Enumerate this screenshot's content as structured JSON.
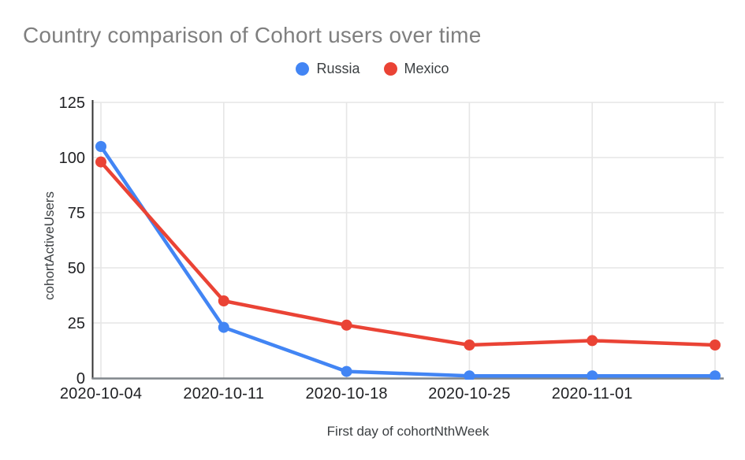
{
  "page": {
    "background": "#ffffff"
  },
  "chart_data": {
    "type": "line",
    "title": "Country comparison of Cohort users over time",
    "title_color": "#7f7f7f",
    "xlabel": "First day of cohortNthWeek",
    "ylabel": "cohortActiveUsers",
    "x_tick_labels": [
      "2020-10-04",
      "2020-10-11",
      "2020-10-18",
      "2020-10-25",
      "2020-11-01",
      ""
    ],
    "y_ticks": [
      0,
      25,
      50,
      75,
      100,
      125
    ],
    "ylim": [
      0,
      125
    ],
    "grid": true,
    "legend_position": "top-center",
    "gridline_color": "#e6e6e6",
    "y_axis_color": "#333333",
    "x_axis_color": "#80868b",
    "tick_label_color": "#202124",
    "axis_title_color": "#3c4043",
    "series": [
      {
        "name": "Russia",
        "color": "#4285f4",
        "values": [
          105,
          23,
          3,
          1,
          1,
          1
        ]
      },
      {
        "name": "Mexico",
        "color": "#ea4335",
        "values": [
          98,
          35,
          24,
          15,
          17,
          15
        ]
      }
    ]
  }
}
